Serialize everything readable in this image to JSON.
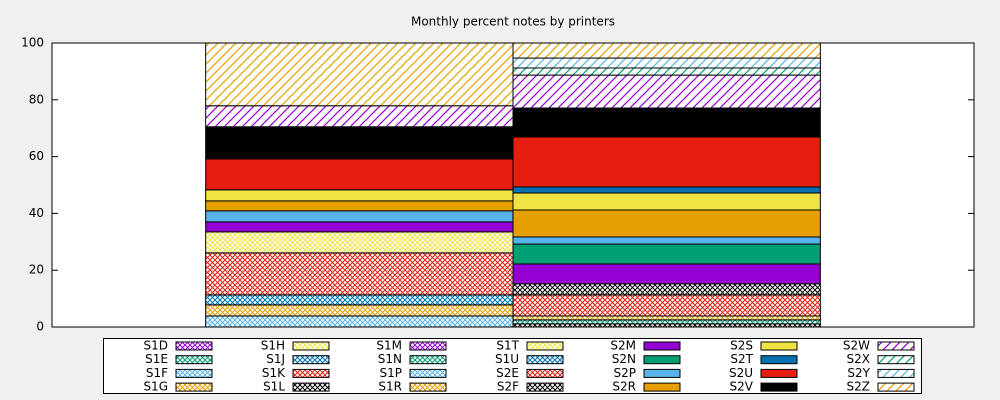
{
  "chart_data": {
    "type": "stacked_bar",
    "title": "Monthly percent notes by printers",
    "categories": [
      null,
      null
    ],
    "ylim": [
      0,
      100
    ],
    "yticks": [
      0,
      20,
      40,
      60,
      80,
      100
    ],
    "series": [
      {
        "name": "S1D",
        "color": "#9400d3",
        "pattern": "crosshatch",
        "values": [
          0,
          0
        ]
      },
      {
        "name": "S1E",
        "color": "#009e73",
        "pattern": "crosshatch",
        "values": [
          0,
          0
        ]
      },
      {
        "name": "S1F",
        "color": "#56b4e9",
        "pattern": "crosshatch",
        "values": [
          3.9,
          0
        ]
      },
      {
        "name": "S1G",
        "color": "#e69f00",
        "pattern": "crosshatch",
        "values": [
          3.9,
          0
        ]
      },
      {
        "name": "S1H",
        "color": "#f0e442",
        "pattern": "crosshatch",
        "values": [
          0,
          0
        ]
      },
      {
        "name": "S1J",
        "color": "#0072b2",
        "pattern": "crosshatch",
        "values": [
          3.5,
          0
        ]
      },
      {
        "name": "S1K",
        "color": "#e51e10",
        "pattern": "crosshatch",
        "values": [
          14.8,
          0
        ]
      },
      {
        "name": "S1L",
        "color": "#000000",
        "pattern": "crosshatch",
        "values": [
          0,
          1.1
        ]
      },
      {
        "name": "S1M",
        "color": "#9400d3",
        "pattern": "crosshatch",
        "values": [
          0,
          0
        ]
      },
      {
        "name": "S1N",
        "color": "#009e73",
        "pattern": "crosshatch",
        "values": [
          0,
          1.4
        ]
      },
      {
        "name": "S1P",
        "color": "#56b4e9",
        "pattern": "crosshatch",
        "values": [
          0,
          0
        ]
      },
      {
        "name": "S1R",
        "color": "#e69f00",
        "pattern": "crosshatch",
        "values": [
          0,
          1.4
        ]
      },
      {
        "name": "S1T",
        "color": "#f0e442",
        "pattern": "crosshatch",
        "values": [
          7.4,
          0
        ]
      },
      {
        "name": "S1U",
        "color": "#0072b2",
        "pattern": "crosshatch",
        "values": [
          0,
          0
        ]
      },
      {
        "name": "S2E",
        "color": "#e51e10",
        "pattern": "crosshatch",
        "values": [
          0,
          7.4
        ]
      },
      {
        "name": "S2F",
        "color": "#000000",
        "pattern": "crosshatch",
        "values": [
          0,
          3.9
        ]
      },
      {
        "name": "S2M",
        "color": "#9400d3",
        "pattern": "solid",
        "values": [
          3.5,
          7.0
        ]
      },
      {
        "name": "S2N",
        "color": "#009e73",
        "pattern": "solid",
        "values": [
          0,
          7.0
        ]
      },
      {
        "name": "S2P",
        "color": "#56b4e9",
        "pattern": "solid",
        "values": [
          3.9,
          2.5
        ]
      },
      {
        "name": "S2R",
        "color": "#e69f00",
        "pattern": "solid",
        "values": [
          3.5,
          9.5
        ]
      },
      {
        "name": "S2S",
        "color": "#f0e442",
        "pattern": "solid",
        "values": [
          3.9,
          6.0
        ]
      },
      {
        "name": "S2T",
        "color": "#0072b2",
        "pattern": "solid",
        "values": [
          0,
          2.1
        ]
      },
      {
        "name": "S2U",
        "color": "#e51e10",
        "pattern": "solid",
        "values": [
          10.9,
          17.6
        ]
      },
      {
        "name": "S2V",
        "color": "#000000",
        "pattern": "solid",
        "values": [
          11.3,
          10.2
        ]
      },
      {
        "name": "S2W",
        "color": "#9400d3",
        "pattern": "hatch",
        "values": [
          7.4,
          11.6
        ]
      },
      {
        "name": "S2X",
        "color": "#009e73",
        "pattern": "hatch",
        "values": [
          0,
          2.5
        ]
      },
      {
        "name": "S2Y",
        "color": "#56b4e9",
        "pattern": "hatch",
        "values": [
          0,
          3.5
        ]
      },
      {
        "name": "S2Z",
        "color": "#e69f00",
        "pattern": "hatch",
        "values": [
          22.1,
          5.3
        ]
      }
    ],
    "legend": "bottom"
  }
}
